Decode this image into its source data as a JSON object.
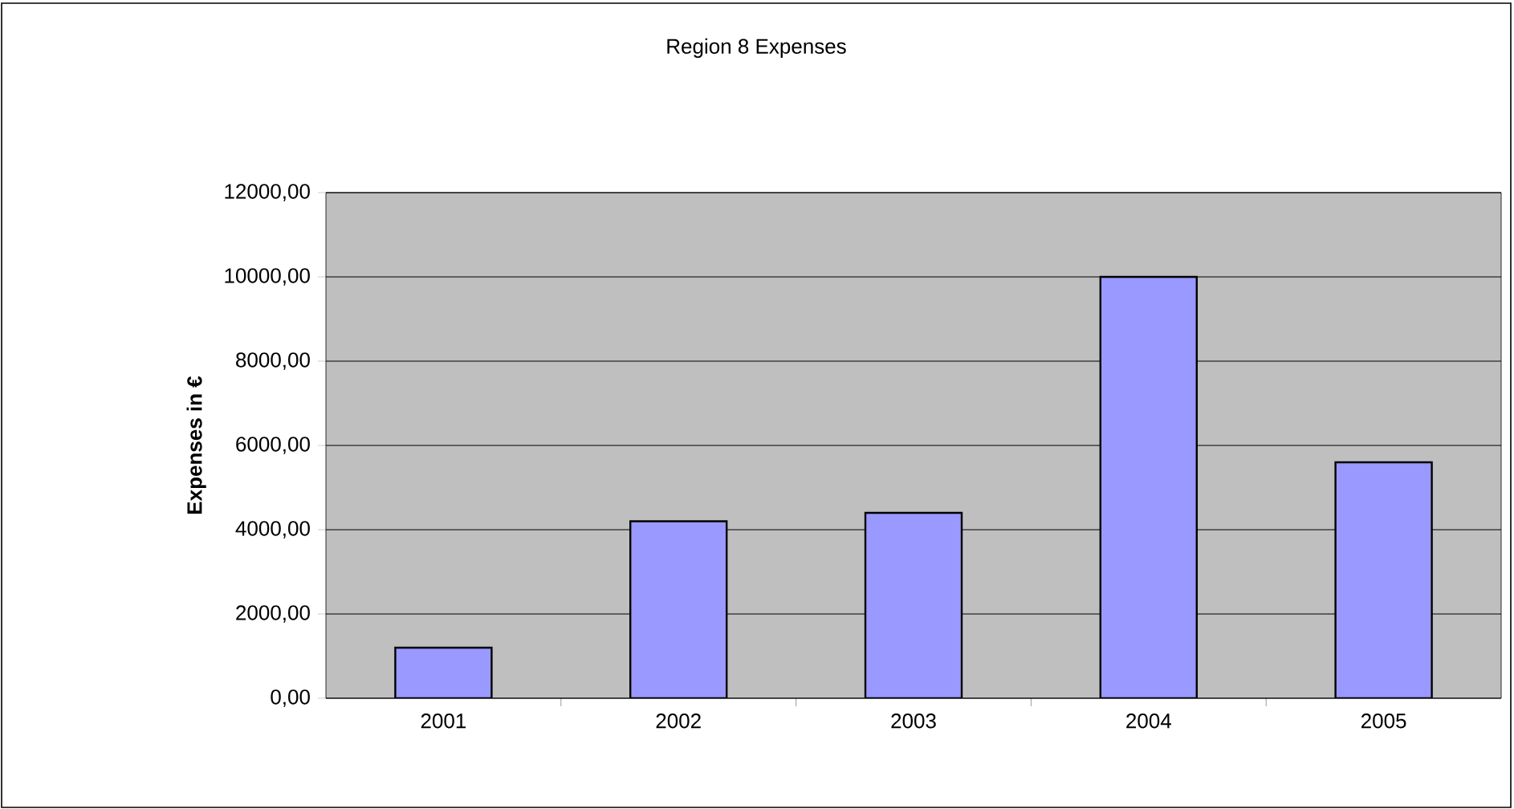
{
  "chart_data": {
    "type": "bar",
    "title": "Region 8 Expenses",
    "ylabel": "Expenses in €",
    "categories": [
      "2001",
      "2002",
      "2003",
      "2004",
      "2005"
    ],
    "values": [
      1200,
      4200,
      4400,
      10000,
      5600
    ],
    "color": "#9999ff",
    "ylim": [
      0,
      12000
    ],
    "yticks": [
      {
        "value": 0,
        "label": "0,00"
      },
      {
        "value": 2000,
        "label": "2000,00"
      },
      {
        "value": 4000,
        "label": "4000,00"
      },
      {
        "value": 6000,
        "label": "6000,00"
      },
      {
        "value": 8000,
        "label": "8000,00"
      },
      {
        "value": 10000,
        "label": "10000,00"
      },
      {
        "value": 12000,
        "label": "12000,00"
      }
    ],
    "grid": "y"
  }
}
